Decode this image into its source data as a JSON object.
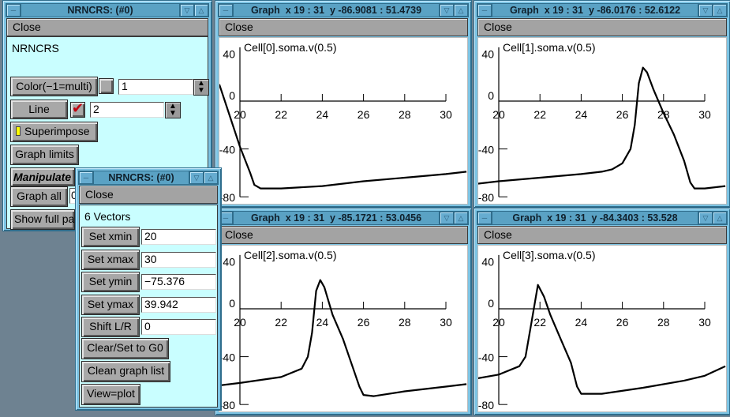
{
  "main_panel": {
    "title": "NRNCRS: (#0)",
    "close_label": "Close",
    "heading": "NRNCRS",
    "color_button": "Color(−1=multi)",
    "color_value": "1",
    "line_button": "Line",
    "line_value": "2",
    "line_checked": true,
    "superimpose_button": "Superimpose",
    "superimpose_indicator_color": "#ffff00",
    "graph_limits_button": "Graph limits",
    "manipulate_label": "Manipulate",
    "graph_all_button": "Graph all",
    "graph_all_value": "0",
    "show_full_button": "Show full par"
  },
  "vectors_panel": {
    "title": "NRNCRS: (#0)",
    "close_label": "Close",
    "heading": "6 Vectors",
    "rows": [
      {
        "button": "Set xmin",
        "value": "20"
      },
      {
        "button": "Set xmax",
        "value": "30"
      },
      {
        "button": "Set ymin",
        "value": "−75.376"
      },
      {
        "button": "Set ymax",
        "value": "39.942"
      },
      {
        "button": "Shift L/R",
        "value": "0"
      }
    ],
    "clear_button": "Clear/Set to G0",
    "clean_button": "Clean graph list",
    "view_button": "View=plot"
  },
  "graphs": [
    {
      "title": "Graph  x 19 : 31  y -86.9081 : 51.4739",
      "close_label": "Close"
    },
    {
      "title": "Graph  x 19 : 31  y -86.0176 : 52.6122",
      "close_label": "Close"
    },
    {
      "title": "Graph  x 19 : 31  y -85.1721 : 53.0456",
      "close_label": "Close"
    },
    {
      "title": "Graph  x 19 : 31  y -84.3403 : 53.528",
      "close_label": "Close"
    }
  ],
  "chart_data": [
    {
      "type": "line",
      "title": "Cell[0].soma.v(0.5)",
      "xlim": [
        19,
        31
      ],
      "ylim": [
        -86.9081,
        51.4739
      ],
      "xticks": [
        "20",
        "22",
        "24",
        "26",
        "28",
        "30"
      ],
      "yticks": [
        "40",
        "0",
        "-40",
        "-80"
      ],
      "x": [
        19,
        20,
        20.5,
        20.7,
        21,
        22,
        24,
        26,
        28,
        30,
        31
      ],
      "y": [
        14,
        -38,
        -60,
        -70,
        -73,
        -73,
        -71,
        -67,
        -64,
        -61,
        -59
      ]
    },
    {
      "type": "line",
      "title": "Cell[1].soma.v(0.5)",
      "xlim": [
        19,
        31
      ],
      "ylim": [
        -86.0176,
        52.6122
      ],
      "xticks": [
        "20",
        "22",
        "24",
        "26",
        "28",
        "30"
      ],
      "yticks": [
        "40",
        "0",
        "-40",
        "-80"
      ],
      "x": [
        19,
        20,
        22,
        24,
        25,
        25.5,
        26,
        26.4,
        26.6,
        26.8,
        27,
        27.2,
        27.5,
        28,
        28.5,
        29,
        29.3,
        29.5,
        30,
        31
      ],
      "y": [
        -69,
        -67,
        -64,
        -61,
        -59,
        -57,
        -52,
        -40,
        -20,
        15,
        28,
        24,
        10,
        -10,
        -28,
        -50,
        -68,
        -73,
        -73,
        -71
      ]
    },
    {
      "type": "line",
      "title": "Cell[2].soma.v(0.5)",
      "xlim": [
        19,
        31
      ],
      "ylim": [
        -85.1721,
        53.0456
      ],
      "xticks": [
        "20",
        "22",
        "24",
        "26",
        "28",
        "30"
      ],
      "yticks": [
        "40",
        "0",
        "-40",
        "-80"
      ],
      "x": [
        19,
        20,
        22,
        23,
        23.3,
        23.5,
        23.7,
        23.9,
        24.1,
        24.5,
        25,
        25.5,
        25.8,
        26,
        26.5,
        28,
        30,
        31
      ],
      "y": [
        -64,
        -62,
        -57,
        -50,
        -40,
        -20,
        15,
        24,
        18,
        -5,
        -25,
        -50,
        -65,
        -72,
        -73,
        -69,
        -65,
        -63
      ]
    },
    {
      "type": "line",
      "title": "Cell[3].soma.v(0.5)",
      "xlim": [
        19,
        31
      ],
      "ylim": [
        -84.3403,
        53.528
      ],
      "xticks": [
        "20",
        "22",
        "24",
        "26",
        "28",
        "30"
      ],
      "yticks": [
        "40",
        "0",
        "-40",
        "-80"
      ],
      "x": [
        19,
        20,
        21,
        21.3,
        21.6,
        21.9,
        22.2,
        22.5,
        23,
        23.5,
        23.8,
        24,
        25,
        27,
        29,
        30,
        31
      ],
      "y": [
        -58,
        -55,
        -48,
        -40,
        -10,
        20,
        10,
        -5,
        -25,
        -45,
        -65,
        -71,
        -71,
        -66,
        -60,
        -56,
        -48
      ]
    }
  ]
}
